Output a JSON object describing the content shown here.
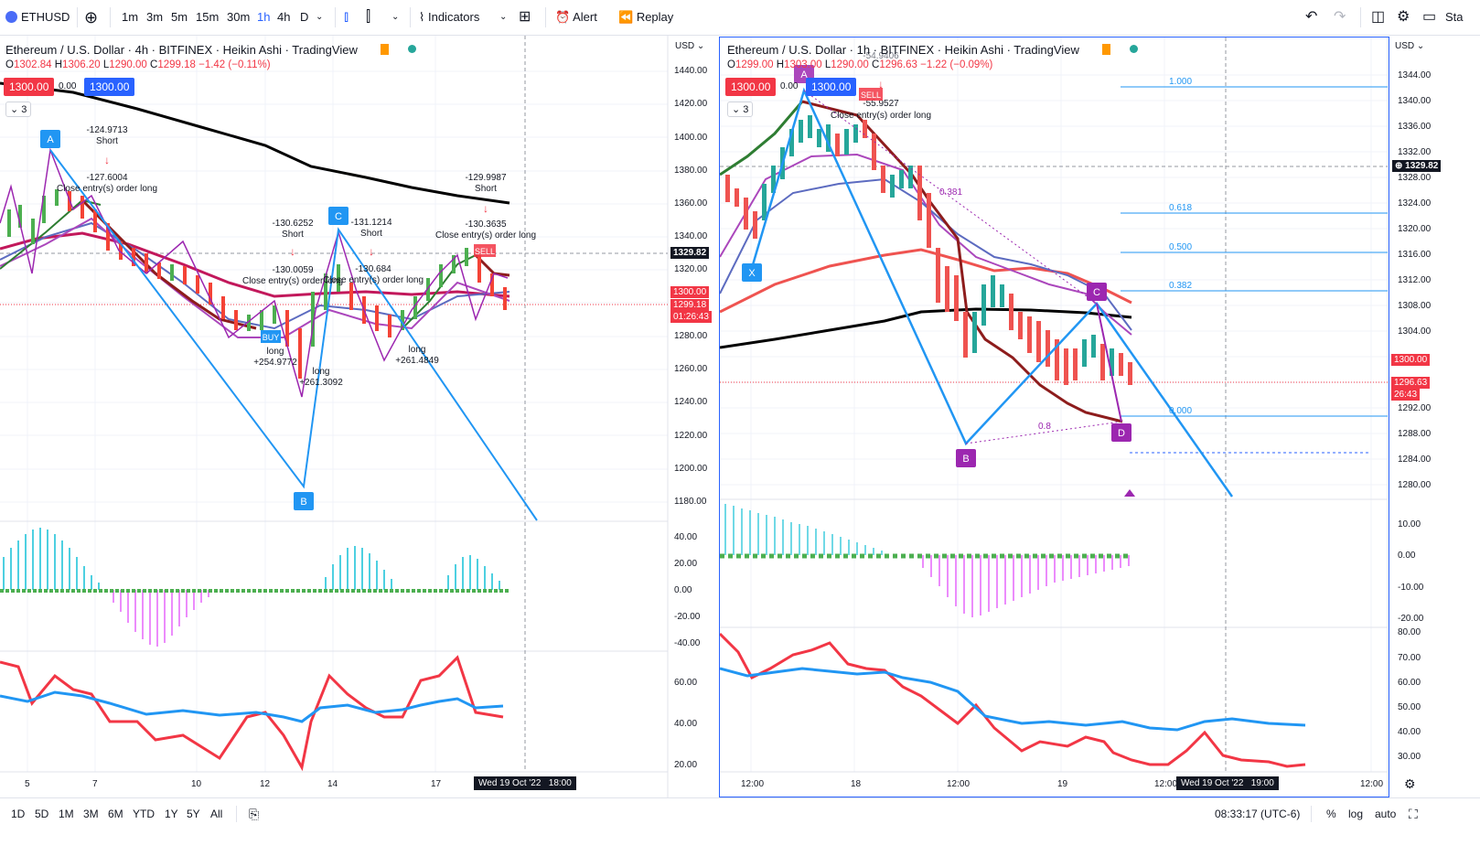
{
  "toolbar": {
    "symbol": "ETHUSD",
    "intervals": [
      "1m",
      "3m",
      "5m",
      "15m",
      "30m",
      "1h",
      "4h",
      "D"
    ],
    "active_interval": "1h",
    "indicators_label": "Indicators",
    "alert_label": "Alert",
    "replay_label": "Replay",
    "trailing_text": "Sta"
  },
  "left_chart": {
    "title": "Ethereum / U.S. Dollar · 4h · BITFINEX · Heikin Ashi · TradingView",
    "ohlc": {
      "o_label": "O",
      "o": "1302.84",
      "h_label": "H",
      "h": "1306.20",
      "l_label": "L",
      "l": "1290.00",
      "c_label": "C",
      "c": "1299.18",
      "change": "−1.42 (−0.11%)"
    },
    "sell_price": "1300.00",
    "spread": "0.00",
    "buy_price": "1300.00",
    "collapse_count": "3",
    "currency": "USD",
    "price_ticks": [
      "1440.00",
      "1420.00",
      "1400.00",
      "1380.00",
      "1360.00",
      "1340.00",
      "1320.00",
      "1300.00",
      "1280.00",
      "1260.00",
      "1240.00",
      "1220.00",
      "1200.00",
      "1180.00"
    ],
    "crosshair_price": "1329.82",
    "last_price_tag": "1300.00",
    "close_price_tag": "1299.18",
    "countdown": "01:26:43",
    "macd_ticks": [
      "40.00",
      "20.00",
      "0.00",
      "-20.00",
      "-40.00"
    ],
    "rsi_ticks": [
      "60.00",
      "40.00",
      "20.00"
    ],
    "time_ticks": [
      "5",
      "7",
      "10",
      "12",
      "14",
      "17"
    ],
    "crosshair_time": "Wed 19 Oct '22",
    "crosshair_hour": "18:00",
    "pattern_points": [
      "A",
      "B",
      "C"
    ],
    "annotations": {
      "a1": "-124.9713",
      "a1s": "Short",
      "a2": "-127.6004",
      "a2s": "Close entry(s) order long",
      "a3": "-130.6252",
      "a3s": "Short",
      "a4": "-131.1214",
      "a4s": "Short",
      "a5": "-130.0059",
      "a5s": "Close entry(s) order long",
      "a6": "-130.684",
      "a6s": "Close entry(s) order long",
      "a7": "-129.9987",
      "a7s": "Short",
      "a8": "-130.3635",
      "a8s": "Close entry(s) order long",
      "b1": "long",
      "b1v": "+254.9772",
      "b2": "long",
      "b2v": "+261.3092",
      "b3": "long",
      "b3v": "+261.4849",
      "buy": "BUY",
      "sell": "SELL"
    }
  },
  "right_chart": {
    "title": "Ethereum / U.S. Dollar · 1h · BITFINEX · Heikin Ashi · TradingView",
    "ohlc": {
      "o_label": "O",
      "o": "1299.00",
      "h_label": "H",
      "h": "1303.00",
      "l_label": "L",
      "l": "1290.00",
      "c_label": "C",
      "c": "1296.63",
      "change": "−1.22 (−0.09%)"
    },
    "sell_price": "1300.00",
    "spread": "0.00",
    "buy_price": "1300.00",
    "collapse_count": "3",
    "currency": "USD",
    "price_ticks": [
      "1344.00",
      "1340.00",
      "1336.00",
      "1332.00",
      "1328.00",
      "1324.00",
      "1320.00",
      "1316.00",
      "1312.00",
      "1308.00",
      "1304.00",
      "1300.00",
      "1296.00",
      "1292.00",
      "1288.00",
      "1284.00",
      "1280.00"
    ],
    "crosshair_price": "1329.82",
    "last_price_tag": "1300.00",
    "close_price_tag": "1296.63",
    "countdown": "26:43",
    "macd_ticks": [
      "10.00",
      "0.00",
      "-10.00",
      "-20.00"
    ],
    "rsi_ticks": [
      "80.00",
      "70.00",
      "60.00",
      "50.00",
      "40.00",
      "30.00"
    ],
    "time_ticks": [
      "12:00",
      "18",
      "12:00",
      "19",
      "12:00",
      "12:00"
    ],
    "crosshair_time": "Wed 19 Oct '22",
    "crosshair_hour": "19:00",
    "pattern_points": [
      "X",
      "A",
      "B",
      "C",
      "D"
    ],
    "fib_levels": [
      "1.000",
      "0.618",
      "0.500",
      "0.382",
      "0.000"
    ],
    "ratio_a": "0.381",
    "ratio_b": "0.8",
    "annotations": {
      "r1": "-54.9406",
      "r2": "-55.9527",
      "r3": "Close entry(s) order long",
      "sell": "SELL"
    }
  },
  "bottombar": {
    "ranges": [
      "1D",
      "5D",
      "1M",
      "3M",
      "6M",
      "YTD",
      "1Y",
      "5Y",
      "All"
    ],
    "clock": "08:33:17 (UTC-6)",
    "percent": "%",
    "log": "log",
    "auto": "auto"
  },
  "colors": {
    "accent": "#2962ff",
    "down": "#f23645",
    "up": "#089981",
    "pattern_line": "#2196f3",
    "harmonic": "#9c27b0"
  }
}
